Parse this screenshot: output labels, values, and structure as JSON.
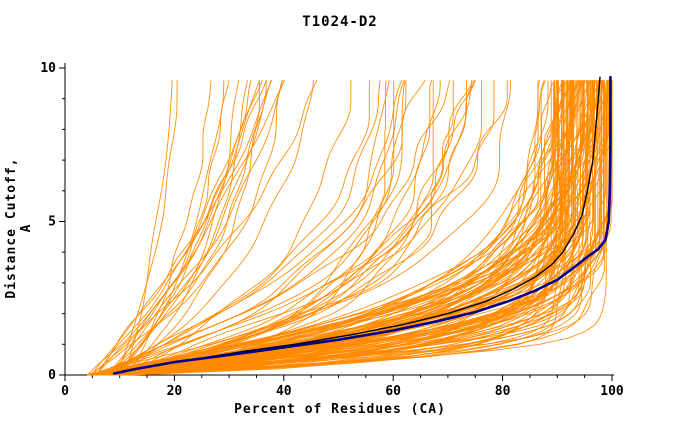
{
  "chart_data": {
    "type": "line",
    "title": "T1024-D2",
    "xlabel": "Percent of Residues (CA)",
    "ylabel": "Distance Cutoff, A",
    "xlim": [
      0,
      100
    ],
    "ylim": [
      0,
      10
    ],
    "x_major_ticks": [
      0,
      20,
      40,
      60,
      80,
      100
    ],
    "x_minor_step": 5,
    "y_major_ticks": [
      0,
      5,
      10
    ],
    "y_minor_step": 1,
    "grid": false,
    "legend": "none",
    "colors": {
      "ensemble": "#FF8A00",
      "reference": "#000000",
      "highlight": "#00008B",
      "axis": "#000000",
      "background": "#FFFFFF"
    },
    "series": [
      {
        "name": "orange-ensemble",
        "type": "procedural",
        "description": "bundle of per-model cumulative distance-cutoff curves",
        "color_key": "ensemble",
        "width": 0.9,
        "count": 160,
        "seed": 42,
        "poor_fraction": 0.15,
        "mid_fraction": 0.15,
        "x_start_range": [
          4,
          12
        ],
        "x_end_range_good": [
          88,
          100
        ],
        "x_end_range_mid": [
          58,
          86
        ],
        "x_end_range_poor": [
          20,
          55
        ]
      },
      {
        "name": "black-curve",
        "type": "points",
        "color_key": "reference",
        "width": 1.4,
        "points": [
          [
            9,
            0.05
          ],
          [
            12,
            0.15
          ],
          [
            18,
            0.35
          ],
          [
            25,
            0.55
          ],
          [
            33,
            0.78
          ],
          [
            42,
            1.0
          ],
          [
            52,
            1.3
          ],
          [
            62,
            1.65
          ],
          [
            70,
            2.0
          ],
          [
            77,
            2.4
          ],
          [
            82,
            2.8
          ],
          [
            86,
            3.2
          ],
          [
            89,
            3.6
          ],
          [
            91,
            4.0
          ],
          [
            93,
            4.6
          ],
          [
            94.5,
            5.2
          ],
          [
            95.5,
            6.0
          ],
          [
            96.5,
            7.0
          ],
          [
            97,
            8.0
          ],
          [
            97.5,
            9.0
          ],
          [
            97.8,
            9.7
          ]
        ]
      },
      {
        "name": "blue-curve",
        "type": "points",
        "color_key": "highlight",
        "width": 2.6,
        "points": [
          [
            9,
            0.05
          ],
          [
            13,
            0.2
          ],
          [
            20,
            0.42
          ],
          [
            30,
            0.65
          ],
          [
            40,
            0.9
          ],
          [
            50,
            1.15
          ],
          [
            60,
            1.45
          ],
          [
            68,
            1.75
          ],
          [
            75,
            2.05
          ],
          [
            81,
            2.4
          ],
          [
            86,
            2.75
          ],
          [
            90,
            3.1
          ],
          [
            93,
            3.5
          ],
          [
            95.5,
            3.85
          ],
          [
            97.5,
            4.1
          ],
          [
            98.8,
            4.4
          ],
          [
            99.4,
            5.0
          ],
          [
            99.6,
            6.0
          ],
          [
            99.7,
            7.5
          ],
          [
            99.7,
            9.7
          ]
        ]
      }
    ]
  }
}
